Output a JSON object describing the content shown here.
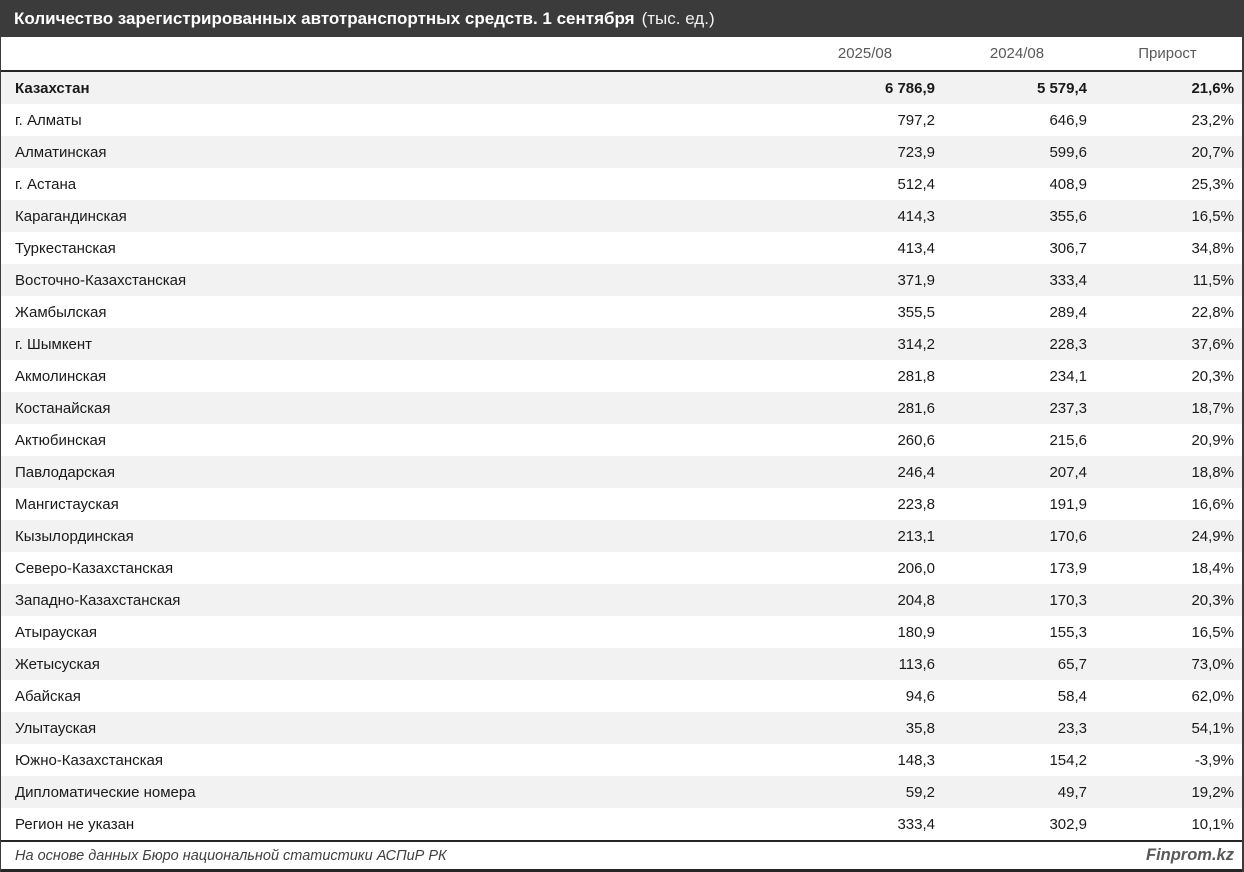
{
  "title": {
    "main": "Количество зарегистрированных автотранспортных средств. 1 сентября",
    "unit": "(тыс. ед.)"
  },
  "chart_data": {
    "type": "table",
    "title": "Количество зарегистрированных автотранспортных средств. 1 сентября (тыс. ед.)",
    "columns": [
      "2025/08",
      "2024/08",
      "Прирост"
    ],
    "total": {
      "name": "Казахстан",
      "v2025": "6 786,9",
      "v2024": "5 579,4",
      "growth": "21,6%"
    },
    "rows": [
      {
        "name": "г. Алматы",
        "v2025": "797,2",
        "v2024": "646,9",
        "growth": "23,2%"
      },
      {
        "name": "Алматинская",
        "v2025": "723,9",
        "v2024": "599,6",
        "growth": "20,7%"
      },
      {
        "name": "г. Астана",
        "v2025": "512,4",
        "v2024": "408,9",
        "growth": "25,3%"
      },
      {
        "name": "Карагандинская",
        "v2025": "414,3",
        "v2024": "355,6",
        "growth": "16,5%"
      },
      {
        "name": "Туркестанская",
        "v2025": "413,4",
        "v2024": "306,7",
        "growth": "34,8%"
      },
      {
        "name": "Восточно-Казахстанская",
        "v2025": "371,9",
        "v2024": "333,4",
        "growth": "11,5%"
      },
      {
        "name": "Жамбылская",
        "v2025": "355,5",
        "v2024": "289,4",
        "growth": "22,8%"
      },
      {
        "name": "г. Шымкент",
        "v2025": "314,2",
        "v2024": "228,3",
        "growth": "37,6%"
      },
      {
        "name": "Акмолинская",
        "v2025": "281,8",
        "v2024": "234,1",
        "growth": "20,3%"
      },
      {
        "name": "Костанайская",
        "v2025": "281,6",
        "v2024": "237,3",
        "growth": "18,7%"
      },
      {
        "name": "Актюбинская",
        "v2025": "260,6",
        "v2024": "215,6",
        "growth": "20,9%"
      },
      {
        "name": "Павлодарская",
        "v2025": "246,4",
        "v2024": "207,4",
        "growth": "18,8%"
      },
      {
        "name": "Мангистауская",
        "v2025": "223,8",
        "v2024": "191,9",
        "growth": "16,6%"
      },
      {
        "name": "Кызылординская",
        "v2025": "213,1",
        "v2024": "170,6",
        "growth": "24,9%"
      },
      {
        "name": "Северо-Казахстанская",
        "v2025": "206,0",
        "v2024": "173,9",
        "growth": "18,4%"
      },
      {
        "name": "Западно-Казахстанская",
        "v2025": "204,8",
        "v2024": "170,3",
        "growth": "20,3%"
      },
      {
        "name": "Атырауская",
        "v2025": "180,9",
        "v2024": "155,3",
        "growth": "16,5%"
      },
      {
        "name": "Жетысуская",
        "v2025": "113,6",
        "v2024": "65,7",
        "growth": "73,0%"
      },
      {
        "name": "Абайская",
        "v2025": "94,6",
        "v2024": "58,4",
        "growth": "62,0%"
      },
      {
        "name": "Улытауская",
        "v2025": "35,8",
        "v2024": "23,3",
        "growth": "54,1%"
      },
      {
        "name": "Южно-Казахстанская",
        "v2025": "148,3",
        "v2024": "154,2",
        "growth": "-3,9%"
      },
      {
        "name": "Дипломатические номера",
        "v2025": "59,2",
        "v2024": "49,7",
        "growth": "19,2%"
      },
      {
        "name": "Регион не указан",
        "v2025": "333,4",
        "v2024": "302,9",
        "growth": "10,1%"
      }
    ]
  },
  "footer": {
    "source": "На основе данных Бюро национальной статистики АСПиР РК",
    "brand": "Finprom.kz"
  },
  "colors": {
    "titlebar_bg": "#3b3b3b",
    "zebra_row": "#f2f2f2",
    "border_dark": "#262626",
    "header_text": "#595959"
  }
}
